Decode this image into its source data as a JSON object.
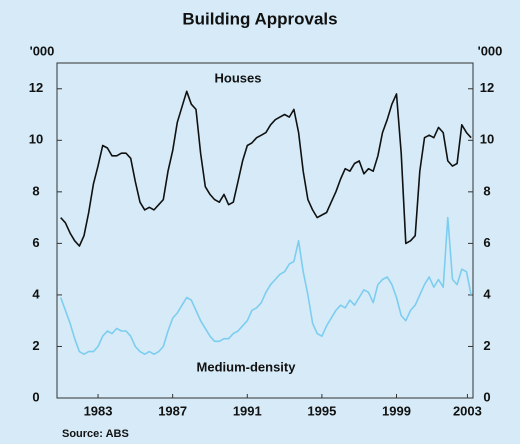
{
  "chart_data": {
    "type": "line",
    "title": "Building Approvals",
    "unit_label": "'000",
    "source": "Source: ABS",
    "annotations": [
      "Houses",
      "Medium-density"
    ],
    "x": [
      1981.5,
      1981.75,
      1982,
      1982.25,
      1982.5,
      1982.75,
      1983,
      1983.25,
      1983.5,
      1983.75,
      1984,
      1984.25,
      1984.5,
      1984.75,
      1985,
      1985.25,
      1985.5,
      1985.75,
      1986,
      1986.25,
      1986.5,
      1986.75,
      1987,
      1987.25,
      1987.5,
      1987.75,
      1988,
      1988.25,
      1988.5,
      1988.75,
      1989,
      1989.25,
      1989.5,
      1989.75,
      1990,
      1990.25,
      1990.5,
      1990.75,
      1991,
      1991.25,
      1991.5,
      1991.75,
      1992,
      1992.25,
      1992.5,
      1992.75,
      1993,
      1993.25,
      1993.5,
      1993.75,
      1994,
      1994.25,
      1994.5,
      1994.75,
      1995,
      1995.25,
      1995.5,
      1995.75,
      1996,
      1996.25,
      1996.5,
      1996.75,
      1997,
      1997.25,
      1997.5,
      1997.75,
      1998,
      1998.25,
      1998.5,
      1998.75,
      1999,
      1999.25,
      1999.5,
      1999.75,
      2000,
      2000.25,
      2000.5,
      2000.75,
      2001,
      2001.25,
      2001.5,
      2001.75,
      2002,
      2002.25,
      2002.5,
      2002.75,
      2003,
      2003.25,
      2003.5
    ],
    "series": [
      {
        "name": "Houses",
        "color": "#111111",
        "values": [
          7.0,
          6.8,
          6.4,
          6.1,
          5.9,
          6.3,
          7.2,
          8.3,
          9.0,
          9.8,
          9.7,
          9.4,
          9.4,
          9.5,
          9.5,
          9.3,
          8.4,
          7.6,
          7.3,
          7.4,
          7.3,
          7.5,
          7.7,
          8.8,
          9.6,
          10.7,
          11.3,
          11.9,
          11.4,
          11.2,
          9.5,
          8.2,
          7.9,
          7.7,
          7.6,
          7.9,
          7.5,
          7.6,
          8.4,
          9.2,
          9.8,
          9.9,
          10.1,
          10.2,
          10.3,
          10.6,
          10.8,
          10.9,
          11.0,
          10.9,
          11.2,
          10.3,
          8.8,
          7.7,
          7.3,
          7.0,
          7.1,
          7.2,
          7.6,
          8.0,
          8.5,
          8.9,
          8.8,
          9.1,
          9.2,
          8.7,
          8.9,
          8.8,
          9.4,
          10.3,
          10.8,
          11.4,
          11.8,
          9.5,
          6.0,
          6.1,
          6.3,
          8.8,
          10.1,
          10.2,
          10.1,
          10.5,
          10.3,
          9.2,
          9.0,
          9.1,
          10.6,
          10.3,
          10.1
        ]
      },
      {
        "name": "Medium-density",
        "color": "#7ccdf0",
        "values": [
          3.9,
          3.4,
          2.9,
          2.3,
          1.8,
          1.7,
          1.8,
          1.8,
          2.0,
          2.4,
          2.6,
          2.5,
          2.7,
          2.6,
          2.6,
          2.4,
          2.0,
          1.8,
          1.7,
          1.8,
          1.7,
          1.8,
          2.0,
          2.6,
          3.1,
          3.3,
          3.6,
          3.9,
          3.8,
          3.4,
          3.0,
          2.7,
          2.4,
          2.2,
          2.2,
          2.3,
          2.3,
          2.5,
          2.6,
          2.8,
          3.0,
          3.4,
          3.5,
          3.7,
          4.1,
          4.4,
          4.6,
          4.8,
          4.9,
          5.2,
          5.3,
          6.1,
          4.9,
          4.0,
          2.9,
          2.5,
          2.4,
          2.8,
          3.1,
          3.4,
          3.6,
          3.5,
          3.8,
          3.6,
          3.9,
          4.2,
          4.1,
          3.7,
          4.4,
          4.6,
          4.7,
          4.4,
          3.9,
          3.2,
          3.0,
          3.4,
          3.6,
          4.0,
          4.4,
          4.7,
          4.3,
          4.6,
          4.3,
          7.0,
          4.6,
          4.4,
          5.0,
          4.9,
          4.0
        ]
      }
    ],
    "xlim": [
      1981.3,
      2003.6
    ],
    "xticks": [
      {
        "value": 1983.5,
        "label": "1983"
      },
      {
        "value": 1987.5,
        "label": "1987"
      },
      {
        "value": 1991.5,
        "label": "1991"
      },
      {
        "value": 1995.5,
        "label": "1995"
      },
      {
        "value": 1999.5,
        "label": "1999"
      },
      {
        "value": 2003.3,
        "label": "2003"
      }
    ],
    "ylim": [
      0,
      13
    ],
    "yticks": [
      0,
      2,
      4,
      6,
      8,
      10,
      12
    ]
  }
}
